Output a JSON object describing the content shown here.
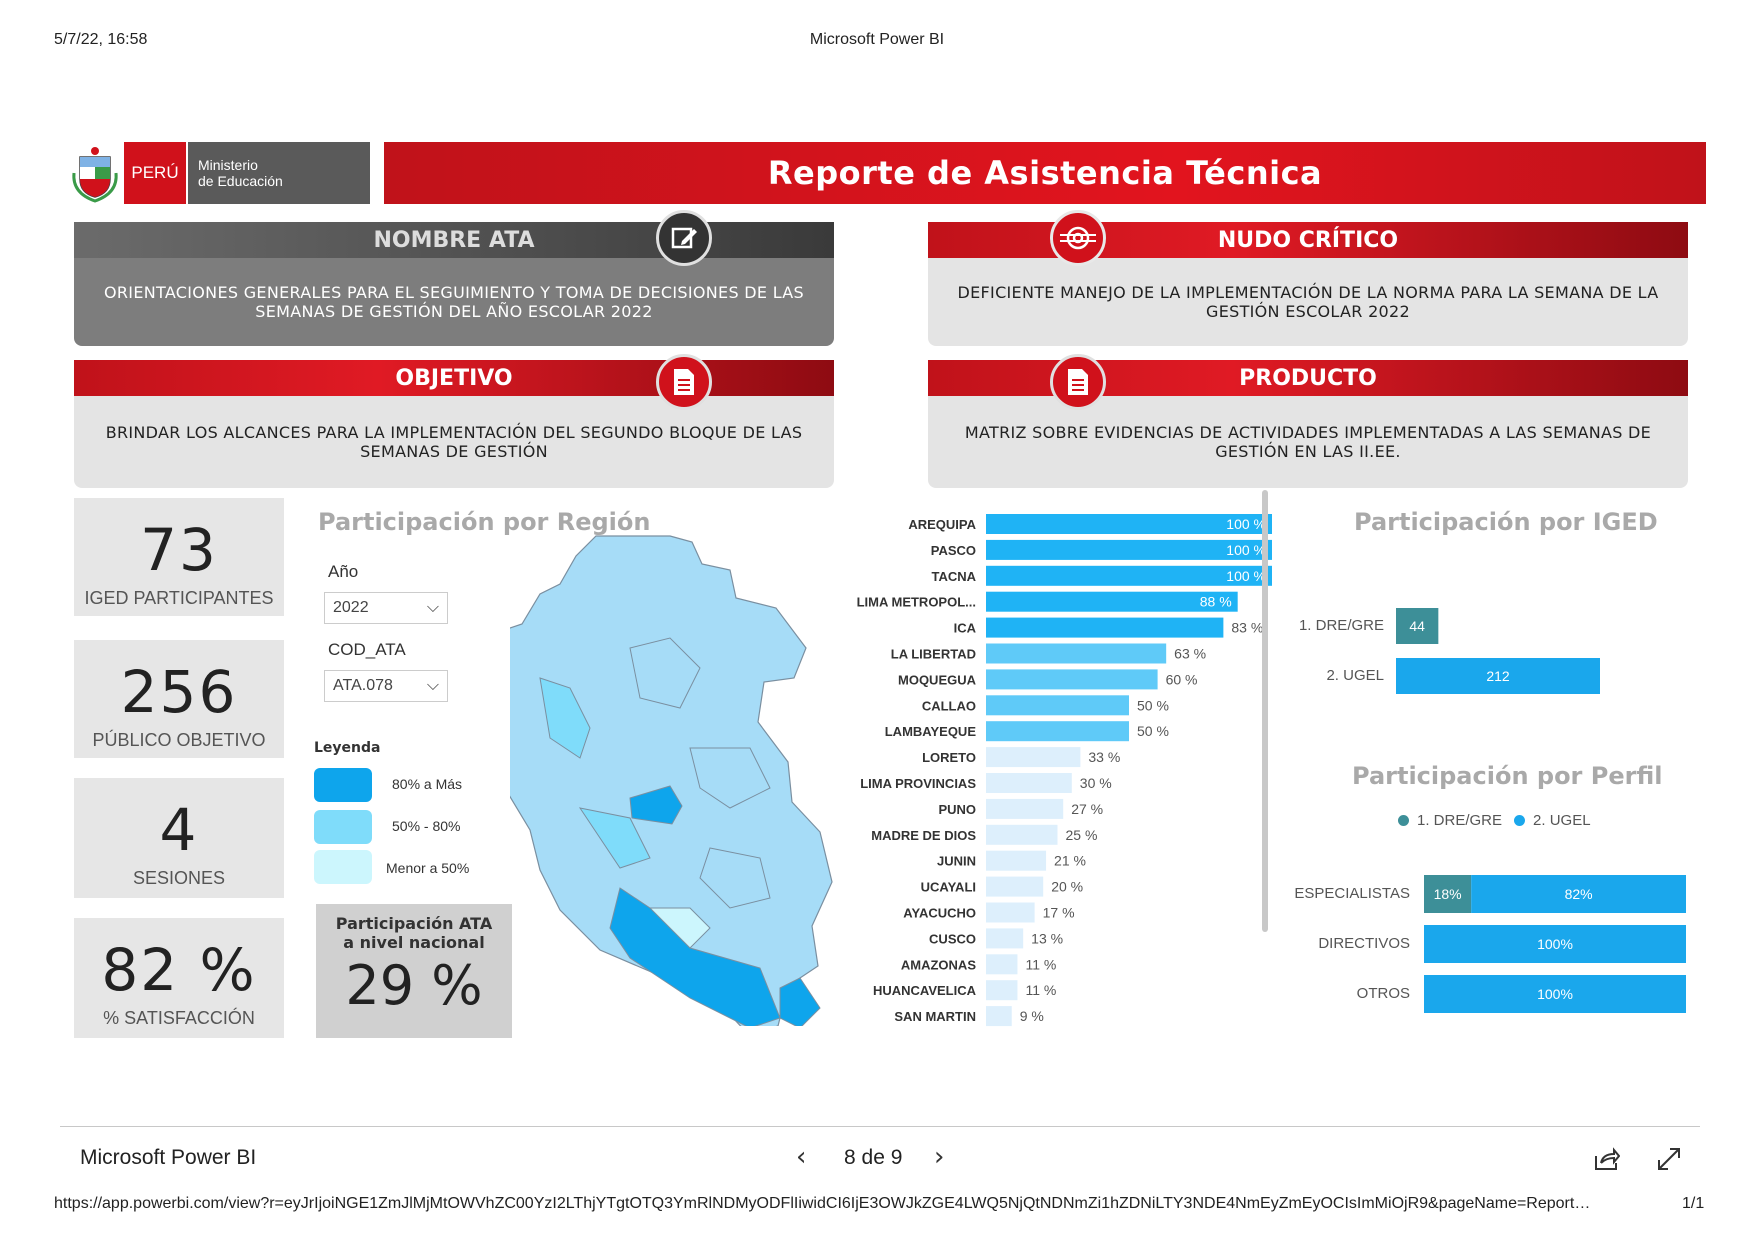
{
  "print_header": {
    "datetime": "5/7/22, 16:58",
    "title": "Microsoft Power BI"
  },
  "logo": {
    "peru": "PERÚ",
    "ministry_line1": "Ministerio",
    "ministry_line2": "de Educación"
  },
  "report_title": "Reporte de Asistencia Técnica",
  "panels": {
    "nombre_ata": {
      "title": "NOMBRE ATA",
      "text": "ORIENTACIONES GENERALES PARA EL SEGUIMIENTO Y TOMA DE DECISIONES DE LAS SEMANAS DE GESTIÓN DEL AÑO ESCOLAR 2022"
    },
    "nudo_critico": {
      "title": "NUDO CRÍTICO",
      "text": "DEFICIENTE MANEJO DE LA IMPLEMENTACIÓN DE LA NORMA PARA LA SEMANA DE LA GESTIÓN ESCOLAR 2022"
    },
    "objetivo": {
      "title": "OBJETIVO",
      "text": "BRINDAR LOS ALCANCES PARA LA IMPLEMENTACIÓN DEL SEGUNDO BLOQUE DE LAS SEMANAS DE GESTIÓN"
    },
    "producto": {
      "title": "PRODUCTO",
      "text": "MATRIZ SOBRE EVIDENCIAS DE ACTIVIDADES IMPLEMENTADAS A LAS SEMANAS DE GESTIÓN EN LAS II.EE."
    }
  },
  "kpis": [
    {
      "value": "73",
      "label": "IGED PARTICIPANTES"
    },
    {
      "value": "256",
      "label": "PÚBLICO OBJETIVO"
    },
    {
      "value": "4",
      "label": "SESIONES"
    },
    {
      "value": "82 %",
      "label": "% SATISFACCIÓN"
    }
  ],
  "region": {
    "title": "Participación por Región",
    "year_label": "Año",
    "year_value": "2022",
    "cod_label": "COD_ATA",
    "cod_value": "ATA.078",
    "legend_title": "Leyenda",
    "legend": [
      {
        "label": "80% a Más",
        "color": "#0ea5ec"
      },
      {
        "label": "50% - 80%",
        "color": "#7fdcfa"
      },
      {
        "label": "Menor  a 50%",
        "color": "#ccf6fd"
      }
    ],
    "national_title_1": "Participación ATA",
    "national_title_2": "a nivel nacional",
    "national_value": "29 %"
  },
  "chart_data": [
    {
      "type": "bar",
      "orientation": "horizontal",
      "categories": [
        "AREQUIPA",
        "PASCO",
        "TACNA",
        "LIMA METROPOL...",
        "ICA",
        "LA LIBERTAD",
        "MOQUEGUA",
        "CALLAO",
        "LAMBAYEQUE",
        "LORETO",
        "LIMA PROVINCIAS",
        "PUNO",
        "MADRE DE DIOS",
        "JUNIN",
        "UCAYALI",
        "AYACUCHO",
        "CUSCO",
        "AMAZONAS",
        "HUANCAVELICA",
        "SAN MARTIN"
      ],
      "values": [
        100,
        100,
        100,
        88,
        83,
        63,
        60,
        50,
        50,
        33,
        30,
        27,
        25,
        21,
        20,
        17,
        13,
        11,
        11,
        9
      ],
      "labels": [
        "100 %",
        "100 %",
        "100 %",
        "88 %",
        "83 %",
        "63 %",
        "60 %",
        "50 %",
        "50 %",
        "33 %",
        "30 %",
        "27 %",
        "25 %",
        "21 %",
        "20 %",
        "17 %",
        "13 %",
        "11 %",
        "11 %",
        "9 %"
      ],
      "xlim": [
        0,
        100
      ]
    },
    {
      "type": "bar",
      "orientation": "horizontal",
      "title": "Participación por IGED",
      "categories": [
        "1. DRE/GRE",
        "2. UGEL"
      ],
      "values": [
        44,
        212
      ],
      "colors": [
        "#3d8f98",
        "#1aa7ec"
      ]
    },
    {
      "type": "bar",
      "orientation": "horizontal",
      "stacked": "percent",
      "title": "Participación por Perfil",
      "categories": [
        "ESPECIALISTAS",
        "DIRECTIVOS",
        "OTROS"
      ],
      "series": [
        {
          "name": "1. DRE/GRE",
          "values": [
            18,
            0,
            0
          ],
          "labels": [
            "18%",
            "",
            ""
          ],
          "color": "#3d8f98"
        },
        {
          "name": "2. UGEL",
          "values": [
            82,
            100,
            100
          ],
          "labels": [
            "82%",
            "100%",
            "100%"
          ],
          "color": "#1aa7ec"
        }
      ]
    }
  ],
  "footer": {
    "app_name": "Microsoft Power BI",
    "page": "8 de 9",
    "url": "https://app.powerbi.com/view?r=eyJrIjoiNGE1ZmJlMjMtOWVhZC00YzI2LThjYTgtOTQ3YmRlNDMyODFlIiwidCI6IjE3OWJkZGE4LWQ5NjQtNDNmZi1hZDNiLTY3NDE4NmEyZmEyOCIsImMiOjR9&pageName=Report…",
    "print_page": "1/1"
  },
  "colors": {
    "accent_red": "#e2141e",
    "bar_blue": "#1fb3f5",
    "dark_teal": "#3d8f98"
  }
}
